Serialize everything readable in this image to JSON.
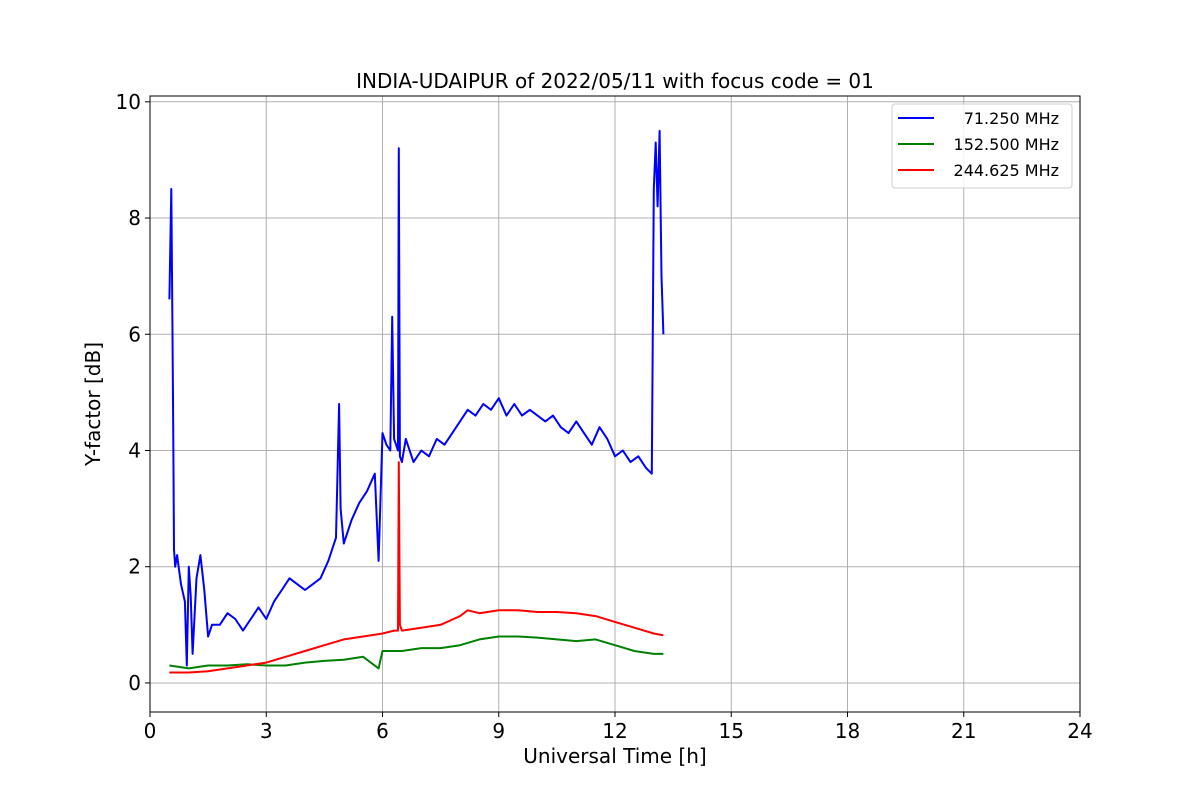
{
  "chart_data": {
    "type": "line",
    "title": "INDIA-UDAIPUR of 2022/05/11 with focus code = 01",
    "xlabel": "Universal Time [h]",
    "ylabel": "Y-factor [dB]",
    "xlim": [
      0,
      24
    ],
    "ylim": [
      -0.5,
      10.1
    ],
    "xticks": [
      0,
      3,
      6,
      9,
      12,
      15,
      18,
      21,
      24
    ],
    "yticks": [
      0,
      2,
      4,
      6,
      8,
      10
    ],
    "grid": true,
    "legend_position": "top-right",
    "series": [
      {
        "name": " 71.250 MHz",
        "color": "#0000ff",
        "x": [
          0.5,
          0.55,
          0.58,
          0.6,
          0.62,
          0.65,
          0.7,
          0.8,
          0.9,
          0.95,
          1.0,
          1.05,
          1.1,
          1.2,
          1.3,
          1.4,
          1.5,
          1.6,
          1.8,
          2.0,
          2.2,
          2.4,
          2.6,
          2.8,
          3.0,
          3.2,
          3.4,
          3.6,
          3.8,
          4.0,
          4.2,
          4.4,
          4.6,
          4.8,
          4.88,
          4.92,
          5.0,
          5.2,
          5.4,
          5.6,
          5.8,
          5.9,
          6.0,
          6.1,
          6.2,
          6.25,
          6.3,
          6.4,
          6.42,
          6.45,
          6.5,
          6.6,
          6.8,
          7.0,
          7.2,
          7.4,
          7.6,
          7.8,
          8.0,
          8.2,
          8.4,
          8.6,
          8.8,
          9.0,
          9.2,
          9.4,
          9.6,
          9.8,
          10.0,
          10.2,
          10.4,
          10.6,
          10.8,
          11.0,
          11.2,
          11.4,
          11.6,
          11.8,
          12.0,
          12.2,
          12.4,
          12.6,
          12.8,
          12.95,
          13.0,
          13.05,
          13.1,
          13.15,
          13.2,
          13.25
        ],
        "y": [
          6.6,
          8.5,
          6.0,
          4.2,
          2.3,
          2.0,
          2.2,
          1.7,
          1.4,
          0.3,
          2.0,
          1.5,
          0.5,
          1.8,
          2.2,
          1.6,
          0.8,
          1.0,
          1.0,
          1.2,
          1.1,
          0.9,
          1.1,
          1.3,
          1.1,
          1.4,
          1.6,
          1.8,
          1.7,
          1.6,
          1.7,
          1.8,
          2.1,
          2.5,
          4.8,
          3.0,
          2.4,
          2.8,
          3.1,
          3.3,
          3.6,
          2.1,
          4.3,
          4.1,
          4.0,
          6.3,
          4.2,
          4.0,
          9.2,
          3.9,
          3.8,
          4.2,
          3.8,
          4.0,
          3.9,
          4.2,
          4.1,
          4.3,
          4.5,
          4.7,
          4.6,
          4.8,
          4.7,
          4.9,
          4.6,
          4.8,
          4.6,
          4.7,
          4.6,
          4.5,
          4.6,
          4.4,
          4.3,
          4.5,
          4.3,
          4.1,
          4.4,
          4.2,
          3.9,
          4.0,
          3.8,
          3.9,
          3.7,
          3.6,
          8.5,
          9.3,
          8.2,
          9.5,
          7.0,
          6.0
        ]
      },
      {
        "name": "152.500 MHz",
        "color": "#008000",
        "x": [
          0.5,
          1.0,
          1.5,
          2.0,
          2.5,
          3.0,
          3.5,
          4.0,
          4.5,
          5.0,
          5.5,
          5.9,
          6.0,
          6.5,
          7.0,
          7.5,
          8.0,
          8.5,
          9.0,
          9.5,
          10.0,
          10.5,
          11.0,
          11.5,
          12.0,
          12.5,
          13.0,
          13.25
        ],
        "y": [
          0.3,
          0.25,
          0.3,
          0.3,
          0.32,
          0.3,
          0.3,
          0.35,
          0.38,
          0.4,
          0.45,
          0.25,
          0.55,
          0.55,
          0.6,
          0.6,
          0.65,
          0.75,
          0.8,
          0.8,
          0.78,
          0.75,
          0.72,
          0.75,
          0.65,
          0.55,
          0.5,
          0.5
        ]
      },
      {
        "name": "244.625 MHz",
        "color": "#ff0000",
        "x": [
          0.5,
          1.0,
          1.5,
          2.0,
          2.5,
          3.0,
          3.5,
          4.0,
          4.5,
          5.0,
          5.5,
          6.0,
          6.3,
          6.4,
          6.42,
          6.45,
          6.5,
          7.0,
          7.5,
          8.0,
          8.2,
          8.5,
          9.0,
          9.5,
          10.0,
          10.5,
          11.0,
          11.5,
          12.0,
          12.5,
          13.0,
          13.25
        ],
        "y": [
          0.18,
          0.18,
          0.2,
          0.25,
          0.3,
          0.35,
          0.45,
          0.55,
          0.65,
          0.75,
          0.8,
          0.85,
          0.9,
          0.9,
          3.8,
          1.0,
          0.9,
          0.95,
          1.0,
          1.15,
          1.25,
          1.2,
          1.25,
          1.25,
          1.22,
          1.22,
          1.2,
          1.15,
          1.05,
          0.95,
          0.85,
          0.82
        ]
      }
    ]
  }
}
